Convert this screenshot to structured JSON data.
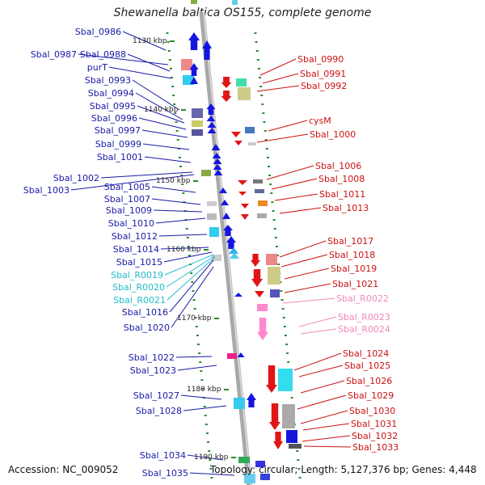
{
  "title": "Shewanella baltica OS155, complete genome",
  "accession_text": "Accession: NC_009052",
  "topology_text": "Topology: circular; Length: 5,127,376 bp; Genes: 4,448",
  "colors": {
    "backbone": "#a8a8a8",
    "tick": "#2e8b2e",
    "left_label": "#1a1aa8",
    "right_label": "#cc1111",
    "rna_left_label": "#22bbcc",
    "rna_right_label": "#ee88bb",
    "gene_blue": "#1515e0",
    "gene_red": "#e01515",
    "gene_pink": "#ff88cc"
  },
  "scale_labels": [
    "1130 kbp",
    "1140 kbp",
    "1150 kbp",
    "1160 kbp",
    "1170 kbp",
    "1180 kbp",
    "1190 kbp"
  ],
  "left_labels": [
    {
      "text": "Sbal_0986",
      "kind": "gene"
    },
    {
      "text": "Sbal_0987",
      "kind": "gene"
    },
    {
      "text": "Sbal_0988",
      "kind": "gene"
    },
    {
      "text": "purT",
      "kind": "gene"
    },
    {
      "text": "Sbal_0993",
      "kind": "gene"
    },
    {
      "text": "Sbal_0994",
      "kind": "gene"
    },
    {
      "text": "Sbal_0995",
      "kind": "gene"
    },
    {
      "text": "Sbal_0996",
      "kind": "gene"
    },
    {
      "text": "Sbal_0997",
      "kind": "gene"
    },
    {
      "text": "Sbal_0999",
      "kind": "gene"
    },
    {
      "text": "Sbal_1001",
      "kind": "gene"
    },
    {
      "text": "Sbal_1002",
      "kind": "gene"
    },
    {
      "text": "Sbal_1003",
      "kind": "gene"
    },
    {
      "text": "Sbal_1005",
      "kind": "gene"
    },
    {
      "text": "Sbal_1007",
      "kind": "gene"
    },
    {
      "text": "Sbal_1009",
      "kind": "gene"
    },
    {
      "text": "Sbal_1010",
      "kind": "gene"
    },
    {
      "text": "Sbal_1012",
      "kind": "gene"
    },
    {
      "text": "Sbal_1014",
      "kind": "gene"
    },
    {
      "text": "Sbal_1015",
      "kind": "gene"
    },
    {
      "text": "Sbal_R0019",
      "kind": "rna"
    },
    {
      "text": "Sbal_R0020",
      "kind": "rna"
    },
    {
      "text": "Sbal_R0021",
      "kind": "rna"
    },
    {
      "text": "Sbal_1016",
      "kind": "gene"
    },
    {
      "text": "Sbal_1020",
      "kind": "gene"
    },
    {
      "text": "Sbal_1022",
      "kind": "gene"
    },
    {
      "text": "Sbal_1023",
      "kind": "gene"
    },
    {
      "text": "Sbal_1027",
      "kind": "gene"
    },
    {
      "text": "Sbal_1028",
      "kind": "gene"
    },
    {
      "text": "Sbal_1034",
      "kind": "gene"
    },
    {
      "text": "Sbal_1035",
      "kind": "gene"
    }
  ],
  "right_labels": [
    {
      "text": "Sbal_0990",
      "kind": "gene"
    },
    {
      "text": "Sbal_0991",
      "kind": "gene"
    },
    {
      "text": "Sbal_0992",
      "kind": "gene"
    },
    {
      "text": "cysM",
      "kind": "gene"
    },
    {
      "text": "Sbal_1000",
      "kind": "gene"
    },
    {
      "text": "Sbal_1006",
      "kind": "gene"
    },
    {
      "text": "Sbal_1008",
      "kind": "gene"
    },
    {
      "text": "Sbal_1011",
      "kind": "gene"
    },
    {
      "text": "Sbal_1013",
      "kind": "gene"
    },
    {
      "text": "Sbal_1017",
      "kind": "gene"
    },
    {
      "text": "Sbal_1018",
      "kind": "gene"
    },
    {
      "text": "Sbal_1019",
      "kind": "gene"
    },
    {
      "text": "Sbal_1021",
      "kind": "gene"
    },
    {
      "text": "Sbal_R0022",
      "kind": "rna"
    },
    {
      "text": "Sbal_R0023",
      "kind": "rna"
    },
    {
      "text": "Sbal_R0024",
      "kind": "rna"
    },
    {
      "text": "Sbal_1024",
      "kind": "gene"
    },
    {
      "text": "Sbal_1025",
      "kind": "gene"
    },
    {
      "text": "Sbal_1026",
      "kind": "gene"
    },
    {
      "text": "Sbal_1029",
      "kind": "gene"
    },
    {
      "text": "Sbal_1030",
      "kind": "gene"
    },
    {
      "text": "Sbal_1031",
      "kind": "gene"
    },
    {
      "text": "Sbal_1032",
      "kind": "gene"
    },
    {
      "text": "Sbal_1033",
      "kind": "gene"
    }
  ]
}
